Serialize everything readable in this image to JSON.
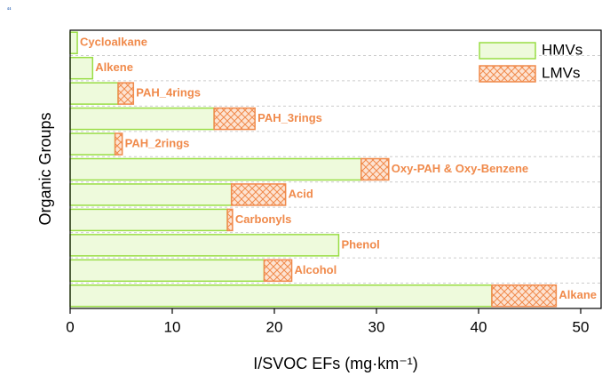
{
  "chart_data": {
    "type": "stacked-barh",
    "annotation": "“",
    "x_label": "I/SVOC EFs (mg·km⁻¹)",
    "y_label": "Organic Groups",
    "categories": [
      "Cycloalkane",
      "Alkene",
      "PAH_4rings",
      "PAH_3rings",
      "PAH_2rings",
      "Oxy-PAH & Oxy-Benzene",
      "Acid",
      "Carbonyls",
      "Phenol",
      "Alcohol",
      "Alkane"
    ],
    "series": [
      {
        "name": "HMVs",
        "color": "#99dd44",
        "values": [
          0.7,
          2.2,
          4.7,
          14.1,
          4.4,
          28.5,
          15.8,
          15.4,
          26.3,
          19.0,
          41.3
        ]
      },
      {
        "name": "LMVs",
        "color": "#f08a4b",
        "values": [
          0,
          0,
          1.5,
          4.0,
          0.7,
          2.7,
          5.3,
          0.5,
          0,
          2.7,
          6.3
        ]
      }
    ],
    "xlim": [
      0,
      52
    ],
    "xticks": [
      0,
      10,
      20,
      30,
      40,
      50
    ],
    "grid": true,
    "legend": "upper right"
  }
}
